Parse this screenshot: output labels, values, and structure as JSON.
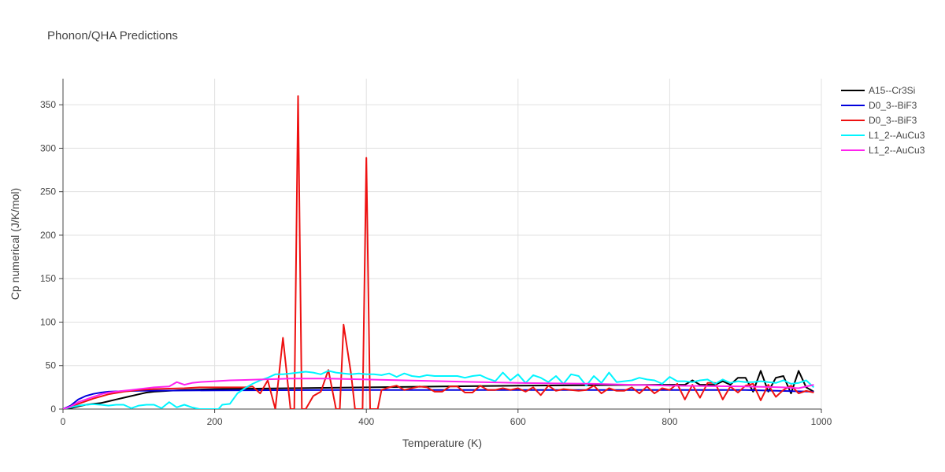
{
  "chart_data": {
    "type": "line",
    "title": "Phonon/QHA Predictions",
    "xlabel": "Temperature (K)",
    "ylabel": "Cp numerical (J/K/mol)",
    "xlim": [
      0,
      1000
    ],
    "ylim": [
      0,
      380
    ],
    "xticks": [
      0,
      200,
      400,
      600,
      800,
      1000
    ],
    "yticks": [
      0,
      50,
      100,
      150,
      200,
      250,
      300,
      350
    ],
    "grid": true,
    "legend_position": "top-right",
    "series": [
      {
        "name": "A15--Cr3Si",
        "color": "#000000",
        "points": [
          [
            0,
            0
          ],
          [
            10,
            1
          ],
          [
            20,
            3
          ],
          [
            30,
            5
          ],
          [
            40,
            6
          ],
          [
            50,
            7
          ],
          [
            60,
            9
          ],
          [
            70,
            11
          ],
          [
            80,
            13
          ],
          [
            90,
            15
          ],
          [
            100,
            17
          ],
          [
            110,
            19
          ],
          [
            120,
            20
          ],
          [
            140,
            21
          ],
          [
            160,
            22
          ],
          [
            200,
            23
          ],
          [
            300,
            24
          ],
          [
            400,
            25
          ],
          [
            500,
            26
          ],
          [
            600,
            27
          ],
          [
            700,
            27.5
          ],
          [
            800,
            28
          ],
          [
            820,
            28
          ],
          [
            830,
            33
          ],
          [
            840,
            28
          ],
          [
            860,
            28
          ],
          [
            870,
            32
          ],
          [
            880,
            28
          ],
          [
            890,
            36
          ],
          [
            900,
            36
          ],
          [
            910,
            20
          ],
          [
            920,
            44
          ],
          [
            930,
            20
          ],
          [
            940,
            36
          ],
          [
            950,
            38
          ],
          [
            960,
            18
          ],
          [
            970,
            44
          ],
          [
            980,
            25
          ],
          [
            990,
            20
          ]
        ]
      },
      {
        "name": "D0_3--BiF3",
        "color": "#0000dd",
        "points": [
          [
            0,
            0
          ],
          [
            10,
            4
          ],
          [
            20,
            11
          ],
          [
            30,
            15
          ],
          [
            40,
            17.5
          ],
          [
            50,
            19
          ],
          [
            60,
            20
          ],
          [
            80,
            20.5
          ],
          [
            100,
            21
          ],
          [
            200,
            21.5
          ],
          [
            400,
            22
          ],
          [
            600,
            22
          ],
          [
            800,
            22
          ],
          [
            900,
            22
          ],
          [
            990,
            20
          ]
        ]
      },
      {
        "name": "D0_3--BiF3",
        "color": "#ee1111",
        "points": [
          [
            0,
            0
          ],
          [
            10,
            2
          ],
          [
            20,
            6
          ],
          [
            30,
            9
          ],
          [
            40,
            12
          ],
          [
            60,
            17
          ],
          [
            80,
            20
          ],
          [
            100,
            22
          ],
          [
            120,
            23
          ],
          [
            140,
            23.5
          ],
          [
            160,
            24
          ],
          [
            180,
            25
          ],
          [
            200,
            25
          ],
          [
            220,
            25
          ],
          [
            240,
            25
          ],
          [
            250,
            26
          ],
          [
            260,
            18
          ],
          [
            270,
            33
          ],
          [
            280,
            0
          ],
          [
            290,
            82
          ],
          [
            300,
            0
          ],
          [
            305,
            0
          ],
          [
            310,
            360
          ],
          [
            315,
            0
          ],
          [
            320,
            0
          ],
          [
            330,
            15
          ],
          [
            340,
            20
          ],
          [
            350,
            45
          ],
          [
            360,
            0
          ],
          [
            365,
            0
          ],
          [
            370,
            97
          ],
          [
            380,
            40
          ],
          [
            385,
            0
          ],
          [
            390,
            0
          ],
          [
            395,
            0
          ],
          [
            400,
            289
          ],
          [
            405,
            0
          ],
          [
            410,
            0
          ],
          [
            415,
            0
          ],
          [
            420,
            22
          ],
          [
            430,
            25
          ],
          [
            440,
            27
          ],
          [
            450,
            22
          ],
          [
            460,
            24
          ],
          [
            470,
            26
          ],
          [
            480,
            25
          ],
          [
            490,
            20
          ],
          [
            500,
            20
          ],
          [
            510,
            26
          ],
          [
            520,
            26
          ],
          [
            530,
            19
          ],
          [
            540,
            19
          ],
          [
            550,
            27
          ],
          [
            560,
            22
          ],
          [
            570,
            22
          ],
          [
            580,
            24
          ],
          [
            590,
            22
          ],
          [
            600,
            24
          ],
          [
            610,
            20
          ],
          [
            620,
            25
          ],
          [
            630,
            16
          ],
          [
            640,
            27
          ],
          [
            650,
            21
          ],
          [
            660,
            23
          ],
          [
            670,
            22
          ],
          [
            680,
            21
          ],
          [
            690,
            22
          ],
          [
            700,
            27
          ],
          [
            710,
            18
          ],
          [
            720,
            24
          ],
          [
            730,
            21
          ],
          [
            740,
            21
          ],
          [
            750,
            25
          ],
          [
            760,
            18
          ],
          [
            770,
            26
          ],
          [
            780,
            18
          ],
          [
            790,
            24
          ],
          [
            800,
            22
          ],
          [
            810,
            29
          ],
          [
            820,
            11
          ],
          [
            830,
            28
          ],
          [
            840,
            13
          ],
          [
            850,
            30
          ],
          [
            860,
            30
          ],
          [
            870,
            11
          ],
          [
            880,
            26
          ],
          [
            890,
            19
          ],
          [
            900,
            27
          ],
          [
            910,
            29
          ],
          [
            920,
            10
          ],
          [
            930,
            28
          ],
          [
            940,
            14
          ],
          [
            950,
            22
          ],
          [
            960,
            27
          ],
          [
            970,
            18
          ],
          [
            980,
            21
          ],
          [
            990,
            19
          ]
        ]
      },
      {
        "name": "L1_2--AuCu3",
        "color": "#00f5ff",
        "points": [
          [
            0,
            0
          ],
          [
            10,
            2
          ],
          [
            20,
            4
          ],
          [
            30,
            5
          ],
          [
            40,
            5.5
          ],
          [
            50,
            5
          ],
          [
            60,
            4
          ],
          [
            70,
            5
          ],
          [
            80,
            5
          ],
          [
            90,
            1
          ],
          [
            100,
            4
          ],
          [
            110,
            5
          ],
          [
            120,
            5
          ],
          [
            130,
            1
          ],
          [
            140,
            8
          ],
          [
            150,
            2
          ],
          [
            160,
            5
          ],
          [
            170,
            2
          ],
          [
            180,
            0
          ],
          [
            190,
            0
          ],
          [
            200,
            0
          ],
          [
            205,
            0
          ],
          [
            210,
            5
          ],
          [
            220,
            6
          ],
          [
            230,
            18
          ],
          [
            240,
            24
          ],
          [
            250,
            29
          ],
          [
            260,
            33
          ],
          [
            270,
            36
          ],
          [
            280,
            40
          ],
          [
            290,
            40
          ],
          [
            300,
            41
          ],
          [
            310,
            42
          ],
          [
            320,
            43
          ],
          [
            330,
            42
          ],
          [
            340,
            40
          ],
          [
            350,
            44
          ],
          [
            360,
            42
          ],
          [
            370,
            41
          ],
          [
            380,
            40
          ],
          [
            390,
            41
          ],
          [
            400,
            40
          ],
          [
            410,
            40
          ],
          [
            420,
            39
          ],
          [
            430,
            41
          ],
          [
            440,
            37
          ],
          [
            450,
            41
          ],
          [
            460,
            38
          ],
          [
            470,
            37
          ],
          [
            480,
            39
          ],
          [
            490,
            38
          ],
          [
            500,
            38
          ],
          [
            510,
            38
          ],
          [
            520,
            38
          ],
          [
            530,
            36
          ],
          [
            540,
            38
          ],
          [
            550,
            39
          ],
          [
            560,
            35
          ],
          [
            570,
            32
          ],
          [
            580,
            42
          ],
          [
            590,
            33
          ],
          [
            600,
            40
          ],
          [
            610,
            30
          ],
          [
            620,
            39
          ],
          [
            630,
            36
          ],
          [
            640,
            31
          ],
          [
            650,
            38
          ],
          [
            660,
            29
          ],
          [
            670,
            40
          ],
          [
            680,
            38
          ],
          [
            690,
            27
          ],
          [
            700,
            38
          ],
          [
            710,
            30
          ],
          [
            720,
            42
          ],
          [
            730,
            31
          ],
          [
            740,
            32
          ],
          [
            750,
            33
          ],
          [
            760,
            36
          ],
          [
            770,
            34
          ],
          [
            780,
            33
          ],
          [
            790,
            29
          ],
          [
            800,
            37
          ],
          [
            810,
            32
          ],
          [
            820,
            32
          ],
          [
            830,
            31
          ],
          [
            840,
            33
          ],
          [
            850,
            34
          ],
          [
            860,
            29
          ],
          [
            870,
            34
          ],
          [
            880,
            30
          ],
          [
            890,
            32
          ],
          [
            900,
            31
          ],
          [
            910,
            31
          ],
          [
            920,
            32
          ],
          [
            930,
            31
          ],
          [
            940,
            30
          ],
          [
            950,
            33
          ],
          [
            960,
            29
          ],
          [
            970,
            30
          ],
          [
            980,
            33
          ],
          [
            990,
            25
          ]
        ]
      },
      {
        "name": "L1_2--AuCu3",
        "color": "#ff22ee",
        "points": [
          [
            0,
            0
          ],
          [
            10,
            3
          ],
          [
            20,
            8
          ],
          [
            30,
            11
          ],
          [
            40,
            14
          ],
          [
            50,
            17
          ],
          [
            60,
            19
          ],
          [
            70,
            20
          ],
          [
            80,
            21
          ],
          [
            90,
            22
          ],
          [
            100,
            23
          ],
          [
            120,
            25
          ],
          [
            140,
            26
          ],
          [
            150,
            31
          ],
          [
            160,
            28
          ],
          [
            170,
            30
          ],
          [
            180,
            31
          ],
          [
            200,
            32
          ],
          [
            220,
            33
          ],
          [
            240,
            33.5
          ],
          [
            260,
            34
          ],
          [
            280,
            34.5
          ],
          [
            300,
            35
          ],
          [
            350,
            35
          ],
          [
            400,
            34
          ],
          [
            450,
            33
          ],
          [
            500,
            32
          ],
          [
            550,
            31
          ],
          [
            600,
            30
          ],
          [
            650,
            29.5
          ],
          [
            700,
            29
          ],
          [
            750,
            28
          ],
          [
            800,
            27
          ],
          [
            850,
            26.5
          ],
          [
            900,
            26
          ],
          [
            950,
            25
          ],
          [
            970,
            24
          ],
          [
            980,
            26
          ],
          [
            990,
            28
          ]
        ]
      }
    ]
  }
}
